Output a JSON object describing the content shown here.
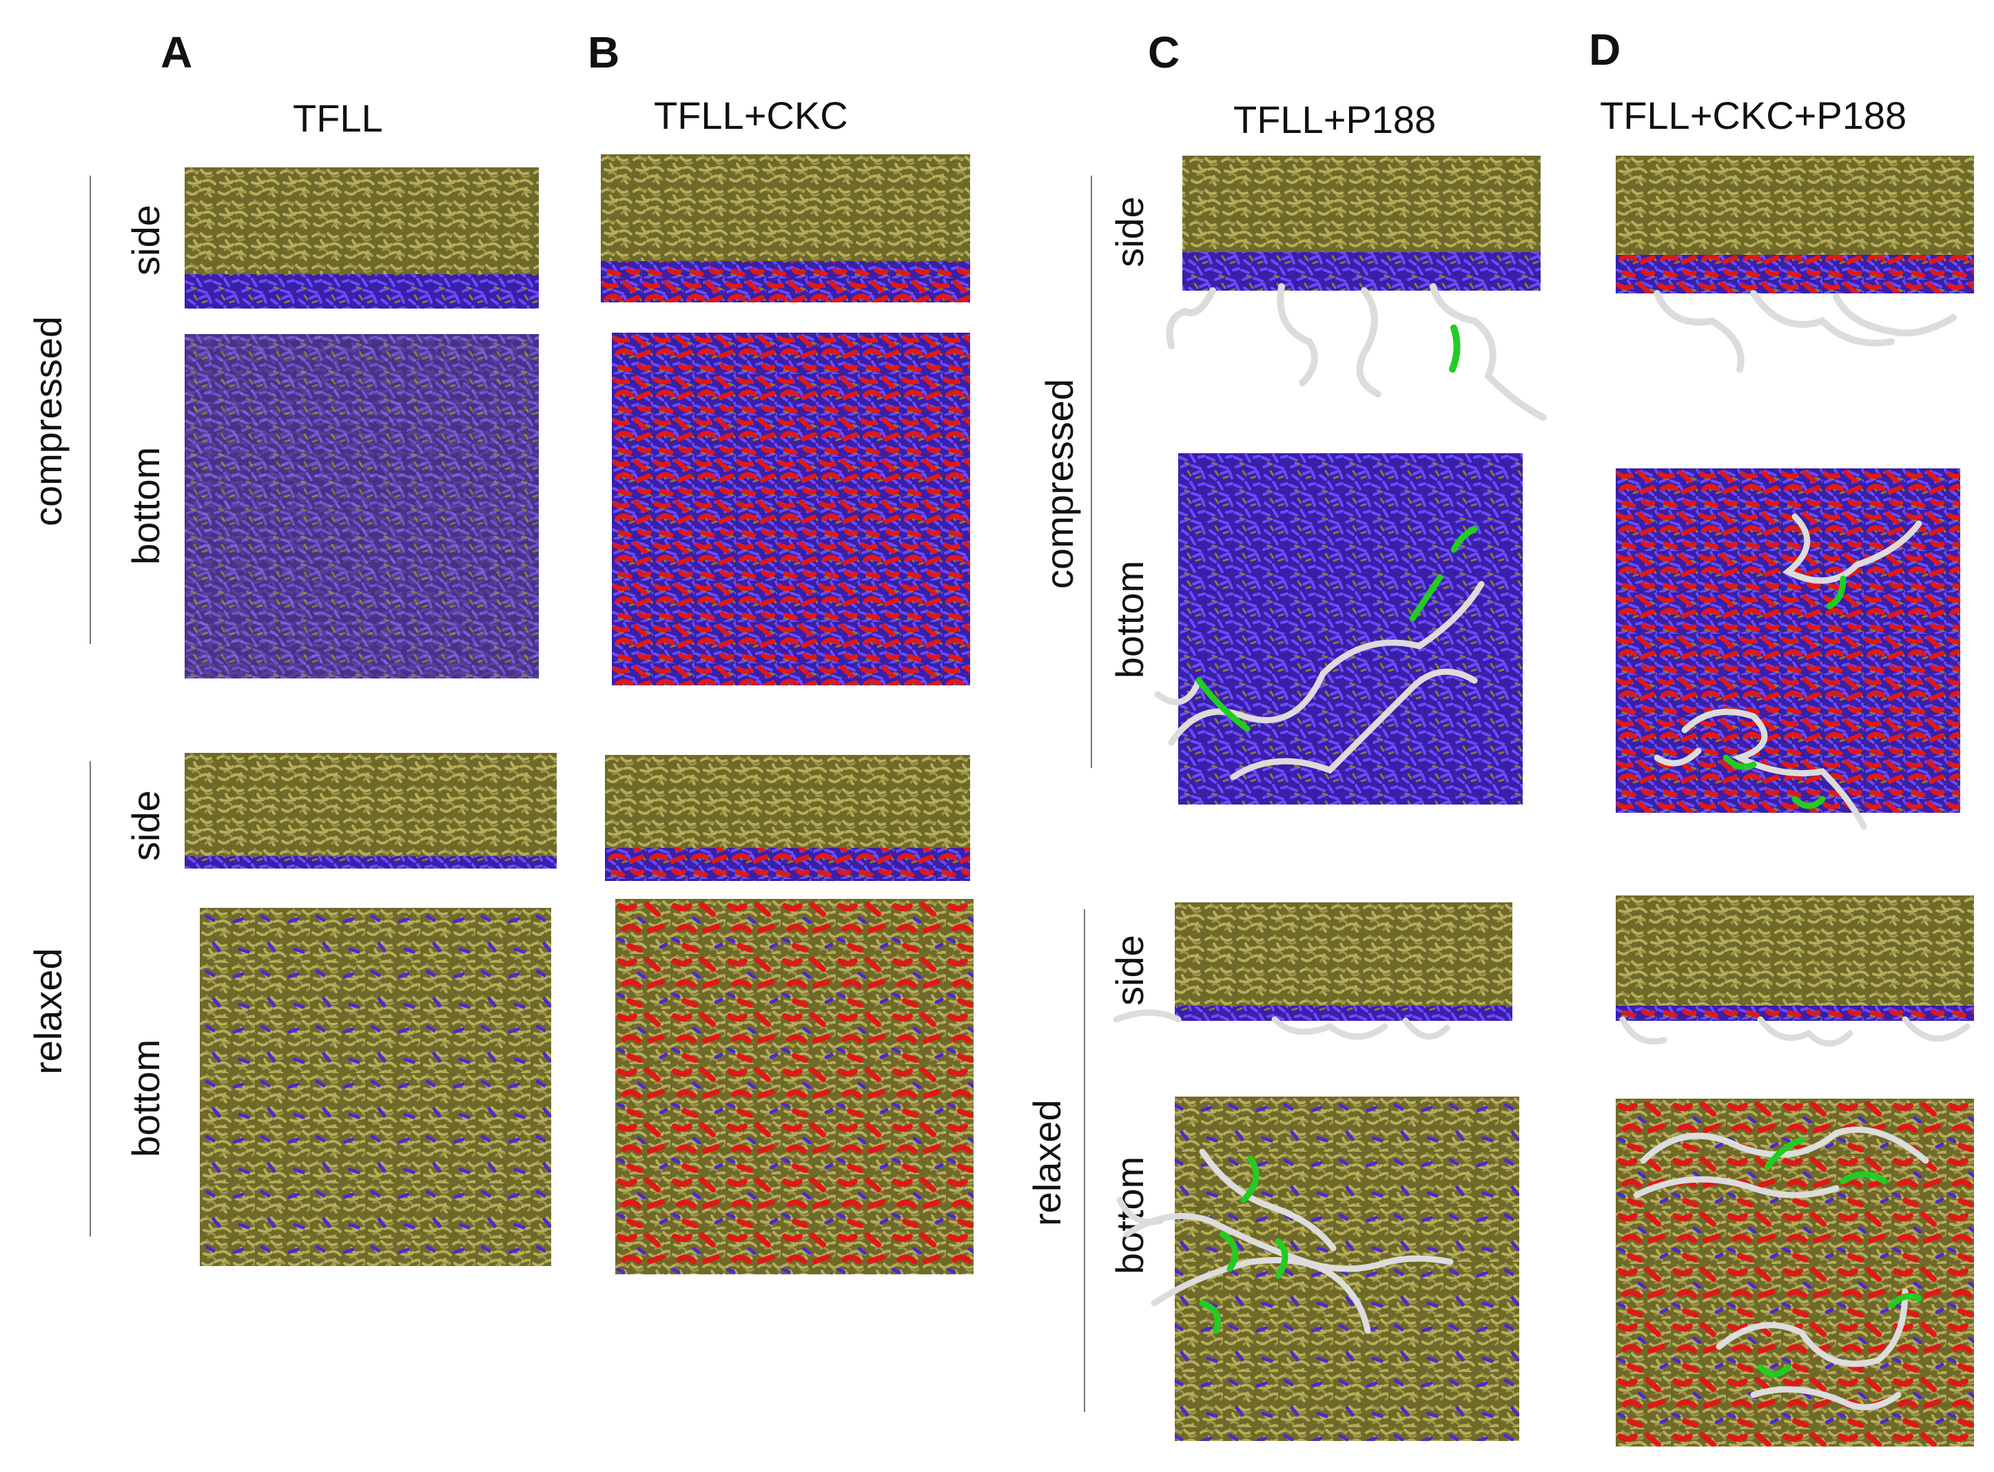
{
  "colors": {
    "lipid_tail": "#8a8436",
    "headgroup": "#4b2ad0",
    "ckc": "#e01818",
    "p188": "#e6e6e6",
    "p188_core": "#22cc22"
  },
  "icons": {
    "snapshot": "molecular-snapshot",
    "polymer": "p188-polymer-chain"
  },
  "panels": [
    {
      "letter": "A",
      "title": "TFLL"
    },
    {
      "letter": "B",
      "title": "TFLL+CKC"
    },
    {
      "letter": "C",
      "title": "TFLL+P188"
    },
    {
      "letter": "D",
      "title": "TFLL+CKC+P188"
    }
  ],
  "labels": {
    "state_compressed": "compressed",
    "state_relaxed": "relaxed",
    "view_side": "side",
    "view_bottom": "bottom"
  }
}
